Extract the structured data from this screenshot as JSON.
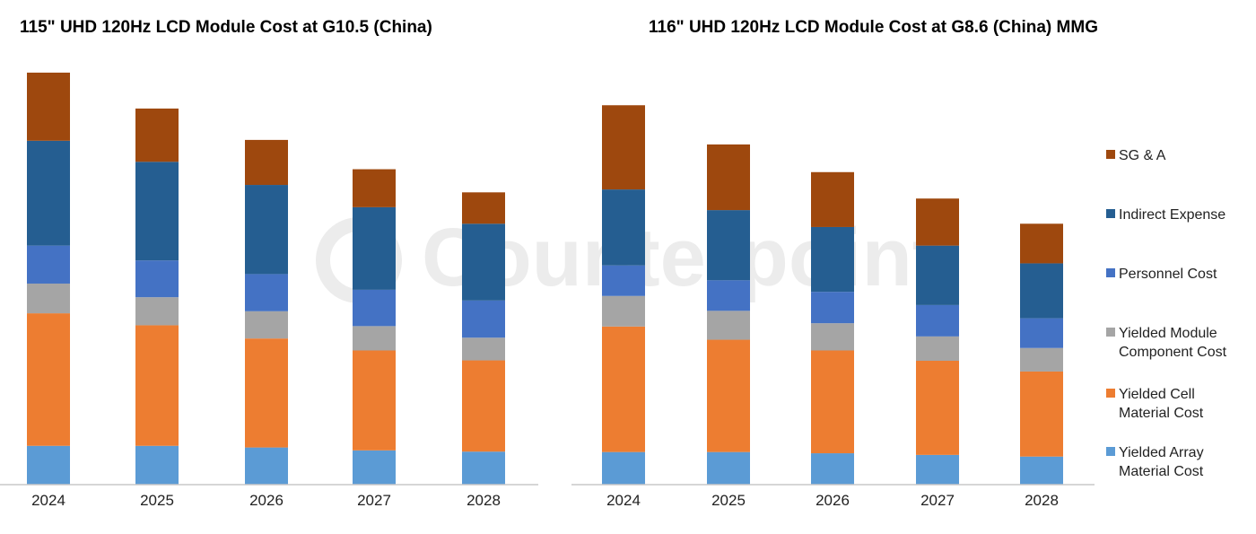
{
  "watermark": "Counterpoint",
  "legend": [
    {
      "key": "sga",
      "lines": [
        "SG & A"
      ],
      "color": "#9E480E"
    },
    {
      "key": "indirect",
      "lines": [
        "Indirect Expense"
      ],
      "color": "#255E91"
    },
    {
      "key": "personnel",
      "lines": [
        "Personnel Cost"
      ],
      "color": "#4472C4"
    },
    {
      "key": "module",
      "lines": [
        "Yielded Module",
        "Component Cost"
      ],
      "color": "#A5A5A5"
    },
    {
      "key": "cell",
      "lines": [
        "Yielded Cell",
        "Material Cost"
      ],
      "color": "#ED7D31"
    },
    {
      "key": "array",
      "lines": [
        "Yielded Array",
        "Material Cost"
      ],
      "color": "#5B9BD5"
    }
  ],
  "chart_data": [
    {
      "type": "bar",
      "stacked": true,
      "title": "115\" UHD 120Hz LCD Module Cost at G10.5 (China)",
      "categories": [
        "2024",
        "2025",
        "2026",
        "2027",
        "2028"
      ],
      "ylim": [
        0,
        100
      ],
      "series": [
        {
          "name": "Yielded Array Material Cost",
          "values": [
            9.4,
            9.4,
            9.0,
            8.3,
            8.0
          ]
        },
        {
          "name": "Yielded Cell Material Cost",
          "values": [
            32.1,
            29.2,
            26.4,
            24.2,
            22.1
          ]
        },
        {
          "name": "Yielded Module Component Cost",
          "values": [
            7.2,
            6.8,
            6.6,
            5.9,
            5.5
          ]
        },
        {
          "name": "Personnel Cost",
          "values": [
            9.2,
            8.9,
            9.0,
            8.8,
            9.0
          ]
        },
        {
          "name": "Indirect Expense",
          "values": [
            25.4,
            23.9,
            21.6,
            20.0,
            18.6
          ]
        },
        {
          "name": "SG & A",
          "values": [
            16.5,
            12.9,
            10.9,
            9.2,
            7.6
          ]
        }
      ]
    },
    {
      "type": "bar",
      "stacked": true,
      "title": "116\" UHD 120Hz LCD Module Cost at G8.6 (China) MMG",
      "categories": [
        "2024",
        "2025",
        "2026",
        "2027",
        "2028"
      ],
      "ylim": [
        0,
        100
      ],
      "series": [
        {
          "name": "Yielded Array Material Cost",
          "values": [
            7.9,
            7.9,
            7.6,
            7.2,
            6.8
          ]
        },
        {
          "name": "Yielded Cell Material Cost",
          "values": [
            30.4,
            27.2,
            24.9,
            22.8,
            20.6
          ]
        },
        {
          "name": "Yielded Module Component Cost",
          "values": [
            7.4,
            7.0,
            6.6,
            5.9,
            5.7
          ]
        },
        {
          "name": "Personnel Cost",
          "values": [
            7.4,
            7.4,
            7.6,
            7.6,
            7.2
          ]
        },
        {
          "name": "Indirect Expense",
          "values": [
            18.4,
            17.0,
            15.7,
            14.4,
            13.3
          ]
        },
        {
          "name": "SG & A",
          "values": [
            20.4,
            15.9,
            13.3,
            11.4,
            9.6
          ]
        }
      ]
    }
  ]
}
